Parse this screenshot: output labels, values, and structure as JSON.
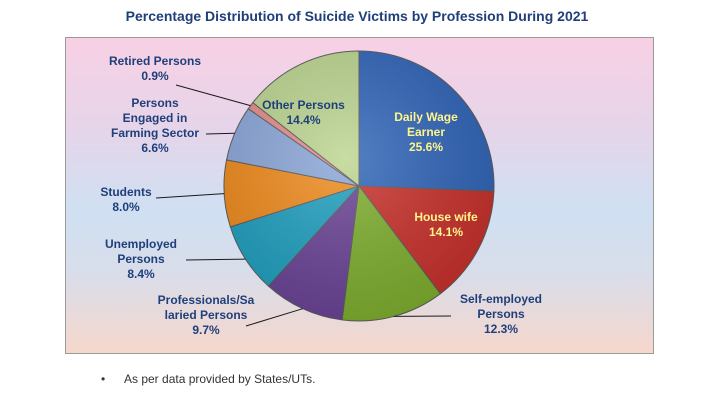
{
  "chart_data": {
    "type": "pie",
    "title": "Percentage Distribution of Suicide Victims by Profession During 2021",
    "slices": [
      {
        "name": "Daily Wage Earner",
        "value": 25.6,
        "label": "25.6%",
        "color": "#2f64b8"
      },
      {
        "name": "House wife",
        "value": 14.1,
        "label": "14.1%",
        "color": "#c8302b"
      },
      {
        "name": "Self-employed Persons",
        "value": 12.3,
        "label": "12.3%",
        "color": "#7eae2e"
      },
      {
        "name": "Professionals/Salaried Persons",
        "value": 9.7,
        "label": "9.7%",
        "color": "#6a4396"
      },
      {
        "name": "Unemployed Persons",
        "value": 8.4,
        "label": "8.4%",
        "color": "#1f9fbf"
      },
      {
        "name": "Students",
        "value": 8.0,
        "label": "8.0%",
        "color": "#ef8a1c"
      },
      {
        "name": "Persons Engaged in Farming Sector",
        "value": 6.6,
        "label": "6.6%",
        "color": "#8aa6d8"
      },
      {
        "name": "Retired Persons",
        "value": 0.9,
        "label": "0.9%",
        "color": "#e58c89"
      },
      {
        "name": "Other Persons",
        "value": 14.4,
        "label": "14.4%",
        "color": "#bcd590"
      }
    ],
    "slice_labels": {
      "daily_wage": [
        "Daily Wage",
        "Earner",
        "25.6%"
      ],
      "house_wife": [
        "House wife",
        "14.1%"
      ],
      "self_employed": [
        "Self-employed",
        "Persons",
        "12.3%"
      ],
      "professionals": [
        "Professionals/Sa",
        "laried Persons",
        "9.7%"
      ],
      "unemployed": [
        "Unemployed",
        "Persons",
        "8.4%"
      ],
      "students": [
        "Students",
        "8.0%"
      ],
      "farming": [
        "Persons",
        "Engaged in",
        "Farming Sector",
        "6.6%"
      ],
      "retired": [
        "Retired Persons",
        "0.9%"
      ],
      "other": [
        "Other Persons",
        "14.4%"
      ]
    }
  },
  "footnote": {
    "bullet": "•",
    "text": "As per data provided by States/UTs."
  }
}
